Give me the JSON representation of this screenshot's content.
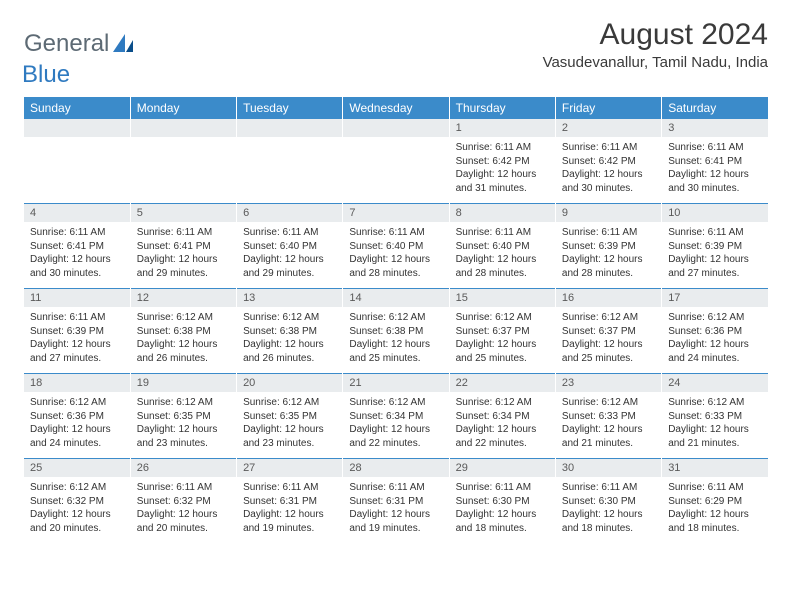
{
  "brand": {
    "word1": "General",
    "word2": "Blue"
  },
  "title": "August 2024",
  "location": "Vasudevanallur, Tamil Nadu, India",
  "theme": {
    "header_bg": "#3b8bca",
    "header_text": "#ffffff",
    "band_bg": "#e9ecee",
    "cell_border_top": "#3b8bca",
    "text_color": "#333333",
    "logo_gray": "#5d6a74",
    "logo_blue": "#2f7ac0"
  },
  "days_of_week": [
    "Sunday",
    "Monday",
    "Tuesday",
    "Wednesday",
    "Thursday",
    "Friday",
    "Saturday"
  ],
  "weeks": [
    [
      {
        "blank": true
      },
      {
        "blank": true
      },
      {
        "blank": true
      },
      {
        "blank": true
      },
      {
        "date": "1",
        "sunrise": "6:11 AM",
        "sunset": "6:42 PM",
        "daylight": "12 hours and 31 minutes."
      },
      {
        "date": "2",
        "sunrise": "6:11 AM",
        "sunset": "6:42 PM",
        "daylight": "12 hours and 30 minutes."
      },
      {
        "date": "3",
        "sunrise": "6:11 AM",
        "sunset": "6:41 PM",
        "daylight": "12 hours and 30 minutes."
      }
    ],
    [
      {
        "date": "4",
        "sunrise": "6:11 AM",
        "sunset": "6:41 PM",
        "daylight": "12 hours and 30 minutes."
      },
      {
        "date": "5",
        "sunrise": "6:11 AM",
        "sunset": "6:41 PM",
        "daylight": "12 hours and 29 minutes."
      },
      {
        "date": "6",
        "sunrise": "6:11 AM",
        "sunset": "6:40 PM",
        "daylight": "12 hours and 29 minutes."
      },
      {
        "date": "7",
        "sunrise": "6:11 AM",
        "sunset": "6:40 PM",
        "daylight": "12 hours and 28 minutes."
      },
      {
        "date": "8",
        "sunrise": "6:11 AM",
        "sunset": "6:40 PM",
        "daylight": "12 hours and 28 minutes."
      },
      {
        "date": "9",
        "sunrise": "6:11 AM",
        "sunset": "6:39 PM",
        "daylight": "12 hours and 28 minutes."
      },
      {
        "date": "10",
        "sunrise": "6:11 AM",
        "sunset": "6:39 PM",
        "daylight": "12 hours and 27 minutes."
      }
    ],
    [
      {
        "date": "11",
        "sunrise": "6:11 AM",
        "sunset": "6:39 PM",
        "daylight": "12 hours and 27 minutes."
      },
      {
        "date": "12",
        "sunrise": "6:12 AM",
        "sunset": "6:38 PM",
        "daylight": "12 hours and 26 minutes."
      },
      {
        "date": "13",
        "sunrise": "6:12 AM",
        "sunset": "6:38 PM",
        "daylight": "12 hours and 26 minutes."
      },
      {
        "date": "14",
        "sunrise": "6:12 AM",
        "sunset": "6:38 PM",
        "daylight": "12 hours and 25 minutes."
      },
      {
        "date": "15",
        "sunrise": "6:12 AM",
        "sunset": "6:37 PM",
        "daylight": "12 hours and 25 minutes."
      },
      {
        "date": "16",
        "sunrise": "6:12 AM",
        "sunset": "6:37 PM",
        "daylight": "12 hours and 25 minutes."
      },
      {
        "date": "17",
        "sunrise": "6:12 AM",
        "sunset": "6:36 PM",
        "daylight": "12 hours and 24 minutes."
      }
    ],
    [
      {
        "date": "18",
        "sunrise": "6:12 AM",
        "sunset": "6:36 PM",
        "daylight": "12 hours and 24 minutes."
      },
      {
        "date": "19",
        "sunrise": "6:12 AM",
        "sunset": "6:35 PM",
        "daylight": "12 hours and 23 minutes."
      },
      {
        "date": "20",
        "sunrise": "6:12 AM",
        "sunset": "6:35 PM",
        "daylight": "12 hours and 23 minutes."
      },
      {
        "date": "21",
        "sunrise": "6:12 AM",
        "sunset": "6:34 PM",
        "daylight": "12 hours and 22 minutes."
      },
      {
        "date": "22",
        "sunrise": "6:12 AM",
        "sunset": "6:34 PM",
        "daylight": "12 hours and 22 minutes."
      },
      {
        "date": "23",
        "sunrise": "6:12 AM",
        "sunset": "6:33 PM",
        "daylight": "12 hours and 21 minutes."
      },
      {
        "date": "24",
        "sunrise": "6:12 AM",
        "sunset": "6:33 PM",
        "daylight": "12 hours and 21 minutes."
      }
    ],
    [
      {
        "date": "25",
        "sunrise": "6:12 AM",
        "sunset": "6:32 PM",
        "daylight": "12 hours and 20 minutes."
      },
      {
        "date": "26",
        "sunrise": "6:11 AM",
        "sunset": "6:32 PM",
        "daylight": "12 hours and 20 minutes."
      },
      {
        "date": "27",
        "sunrise": "6:11 AM",
        "sunset": "6:31 PM",
        "daylight": "12 hours and 19 minutes."
      },
      {
        "date": "28",
        "sunrise": "6:11 AM",
        "sunset": "6:31 PM",
        "daylight": "12 hours and 19 minutes."
      },
      {
        "date": "29",
        "sunrise": "6:11 AM",
        "sunset": "6:30 PM",
        "daylight": "12 hours and 18 minutes."
      },
      {
        "date": "30",
        "sunrise": "6:11 AM",
        "sunset": "6:30 PM",
        "daylight": "12 hours and 18 minutes."
      },
      {
        "date": "31",
        "sunrise": "6:11 AM",
        "sunset": "6:29 PM",
        "daylight": "12 hours and 18 minutes."
      }
    ]
  ],
  "labels": {
    "sunrise": "Sunrise:",
    "sunset": "Sunset:",
    "daylight": "Daylight:"
  }
}
